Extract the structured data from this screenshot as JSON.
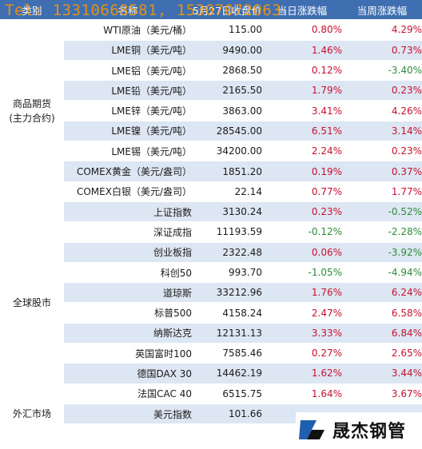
{
  "watermark": "Tel: 13310668581, 15307072063",
  "header": {
    "category": "类别",
    "name": "名称",
    "price": "5月27日收盘价",
    "day_change": "当日涨跌幅",
    "week_change": "当周涨跌幅"
  },
  "sections": [
    {
      "category": "商品期货\n(主力合约)",
      "rows": [
        {
          "name": "WTI原油（美元/桶）",
          "price": "115.00",
          "day": "0.80%",
          "week": "4.29%"
        },
        {
          "name": "LME铜（美元/吨）",
          "price": "9490.00",
          "day": "1.46%",
          "week": "0.73%"
        },
        {
          "name": "LME铝（美元/吨）",
          "price": "2868.50",
          "day": "0.12%",
          "week": "-3.40%"
        },
        {
          "name": "LME铅（美元/吨）",
          "price": "2165.50",
          "day": "1.79%",
          "week": "0.23%"
        },
        {
          "name": "LME锌（美元/吨）",
          "price": "3863.00",
          "day": "3.41%",
          "week": "4.26%"
        },
        {
          "name": "LME镍（美元/吨）",
          "price": "28545.00",
          "day": "6.51%",
          "week": "3.14%"
        },
        {
          "name": "LME锡（美元/吨）",
          "price": "34200.00",
          "day": "2.24%",
          "week": "0.23%"
        },
        {
          "name": "COMEX黄金（美元/盎司）",
          "price": "1851.20",
          "day": "0.19%",
          "week": "0.37%"
        },
        {
          "name": "COMEX白银（美元/盎司）",
          "price": "22.14",
          "day": "0.77%",
          "week": "1.77%"
        }
      ]
    },
    {
      "category": "全球股市",
      "rows": [
        {
          "name": "上证指数",
          "price": "3130.24",
          "day": "0.23%",
          "week": "-0.52%"
        },
        {
          "name": "深证成指",
          "price": "11193.59",
          "day": "-0.12%",
          "week": "-2.28%"
        },
        {
          "name": "创业板指",
          "price": "2322.48",
          "day": "0.06%",
          "week": "-3.92%"
        },
        {
          "name": "科创50",
          "price": "993.70",
          "day": "-1.05%",
          "week": "-4.94%"
        },
        {
          "name": "道琼斯",
          "price": "33212.96",
          "day": "1.76%",
          "week": "6.24%"
        },
        {
          "name": "标普500",
          "price": "4158.24",
          "day": "2.47%",
          "week": "6.58%"
        },
        {
          "name": "纳斯达克",
          "price": "12131.13",
          "day": "3.33%",
          "week": "6.84%"
        },
        {
          "name": "英国富时100",
          "price": "7585.46",
          "day": "0.27%",
          "week": "2.65%"
        },
        {
          "name": "德国DAX 30",
          "price": "14462.19",
          "day": "1.62%",
          "week": "3.44%"
        },
        {
          "name": "法国CAC 40",
          "price": "6515.75",
          "day": "1.64%",
          "week": "3.67%"
        }
      ]
    },
    {
      "category": "外汇市场",
      "rows": [
        {
          "name": "美元指数",
          "price": "101.66",
          "day": "",
          "week": ""
        }
      ]
    }
  ],
  "logo": {
    "text": "晟杰钢管",
    "mark_color": "#1f5fb0"
  }
}
